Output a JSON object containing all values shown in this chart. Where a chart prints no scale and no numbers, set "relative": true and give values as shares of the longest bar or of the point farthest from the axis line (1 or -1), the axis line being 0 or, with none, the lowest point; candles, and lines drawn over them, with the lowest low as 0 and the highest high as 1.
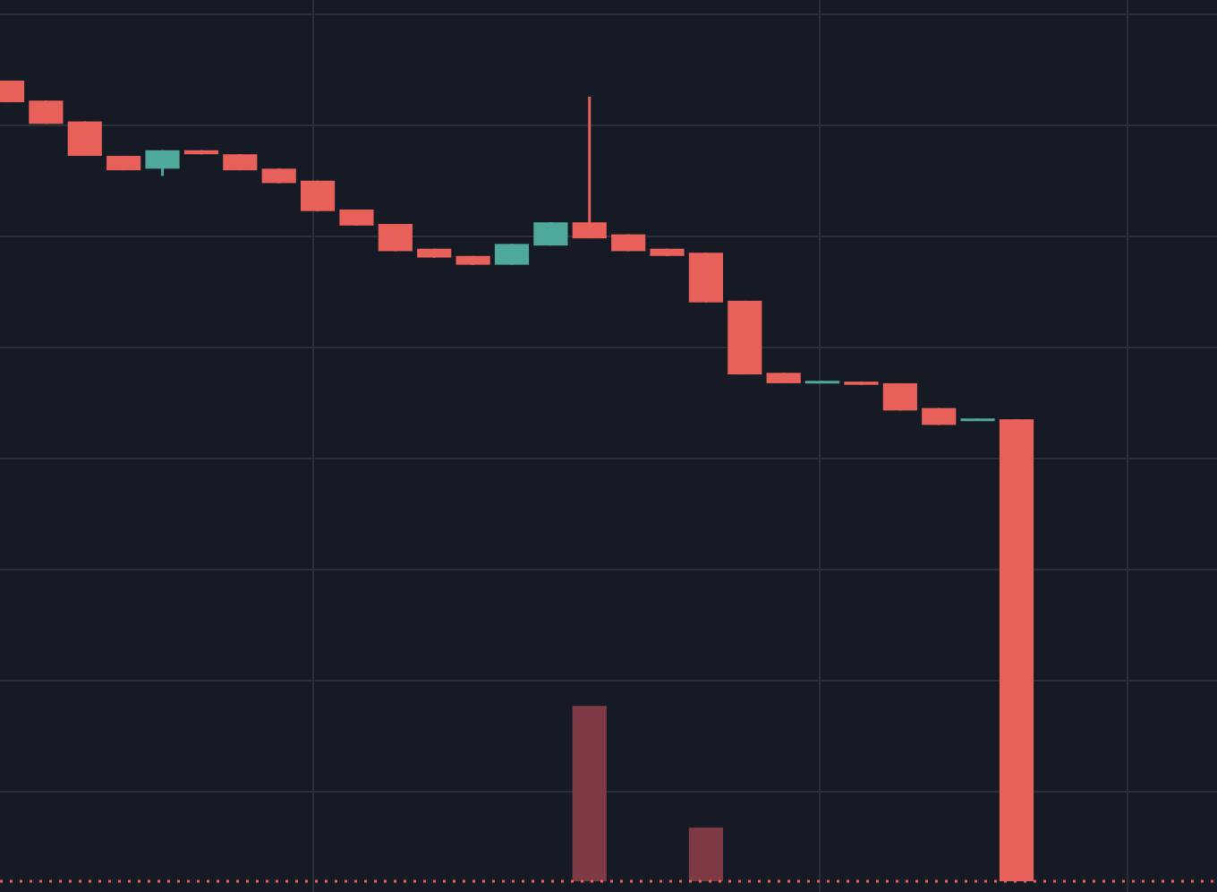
{
  "chart_data": {
    "type": "candlestick",
    "relative": true,
    "grid": true,
    "categories": [
      null,
      null,
      null,
      null,
      null,
      null,
      null,
      null,
      null,
      null,
      null,
      null,
      null,
      null,
      null,
      null,
      null,
      null,
      null,
      null,
      null,
      null,
      null,
      null,
      null,
      null,
      null
    ],
    "ohlc": [
      [
        1.0,
        1.0,
        0.973,
        0.973
      ],
      [
        0.975,
        0.975,
        0.946,
        0.946
      ],
      [
        0.949,
        0.949,
        0.906,
        0.906
      ],
      [
        0.906,
        0.906,
        0.888,
        0.888
      ],
      [
        0.89,
        0.913,
        0.881,
        0.913
      ],
      [
        0.913,
        0.913,
        0.908,
        0.908
      ],
      [
        0.908,
        0.908,
        0.888,
        0.888
      ],
      [
        0.89,
        0.89,
        0.872,
        0.872
      ],
      [
        0.875,
        0.875,
        0.837,
        0.837
      ],
      [
        0.839,
        0.839,
        0.819,
        0.819
      ],
      [
        0.821,
        0.821,
        0.787,
        0.787
      ],
      [
        0.79,
        0.79,
        0.779,
        0.779
      ],
      [
        0.781,
        0.781,
        0.77,
        0.77
      ],
      [
        0.77,
        0.796,
        0.77,
        0.796
      ],
      [
        0.794,
        0.823,
        0.794,
        0.823
      ],
      [
        0.823,
        0.98,
        0.803,
        0.803
      ],
      [
        0.808,
        0.808,
        0.787,
        0.787
      ],
      [
        0.79,
        0.79,
        0.781,
        0.781
      ],
      [
        0.785,
        0.785,
        0.723,
        0.723
      ],
      [
        0.725,
        0.725,
        0.633,
        0.633
      ],
      [
        0.635,
        0.635,
        0.622,
        0.622
      ],
      [
        0.624,
        0.625,
        0.624,
        0.625
      ],
      [
        0.624,
        0.624,
        0.62,
        0.62
      ],
      [
        0.622,
        0.622,
        0.588,
        0.588
      ],
      [
        0.591,
        0.591,
        0.57,
        0.57
      ],
      [
        0.577,
        0.578,
        0.577,
        0.578
      ],
      [
        0.577,
        0.577,
        0.0,
        0.0
      ]
    ],
    "colors": [
      "#e8605a",
      "#e8605a",
      "#e8605a",
      "#e8605a",
      "#4fa99a",
      "#e8605a",
      "#e8605a",
      "#e8605a",
      "#e8605a",
      "#e8605a",
      "#e8605a",
      "#e8605a",
      "#e8605a",
      "#4fa99a",
      "#4fa99a",
      "#e8605a",
      "#e8605a",
      "#e8605a",
      "#e8605a",
      "#e8605a",
      "#e8605a",
      "#4fa99a",
      "#e8605a",
      "#e8605a",
      "#e8605a",
      "#4fa99a",
      "#e8605a"
    ],
    "series": [
      {
        "type": "bar",
        "color": "#7f3b45",
        "values": [
          null,
          null,
          null,
          null,
          null,
          null,
          null,
          null,
          null,
          null,
          null,
          null,
          null,
          null,
          null,
          0.219,
          null,
          null,
          0.067,
          null,
          null,
          null,
          null,
          null,
          null,
          null,
          null
        ]
      }
    ],
    "ref_lines": [
      {
        "axis": "y",
        "value": 0,
        "color": "#e8605a",
        "line_style": "dotted"
      }
    ]
  }
}
